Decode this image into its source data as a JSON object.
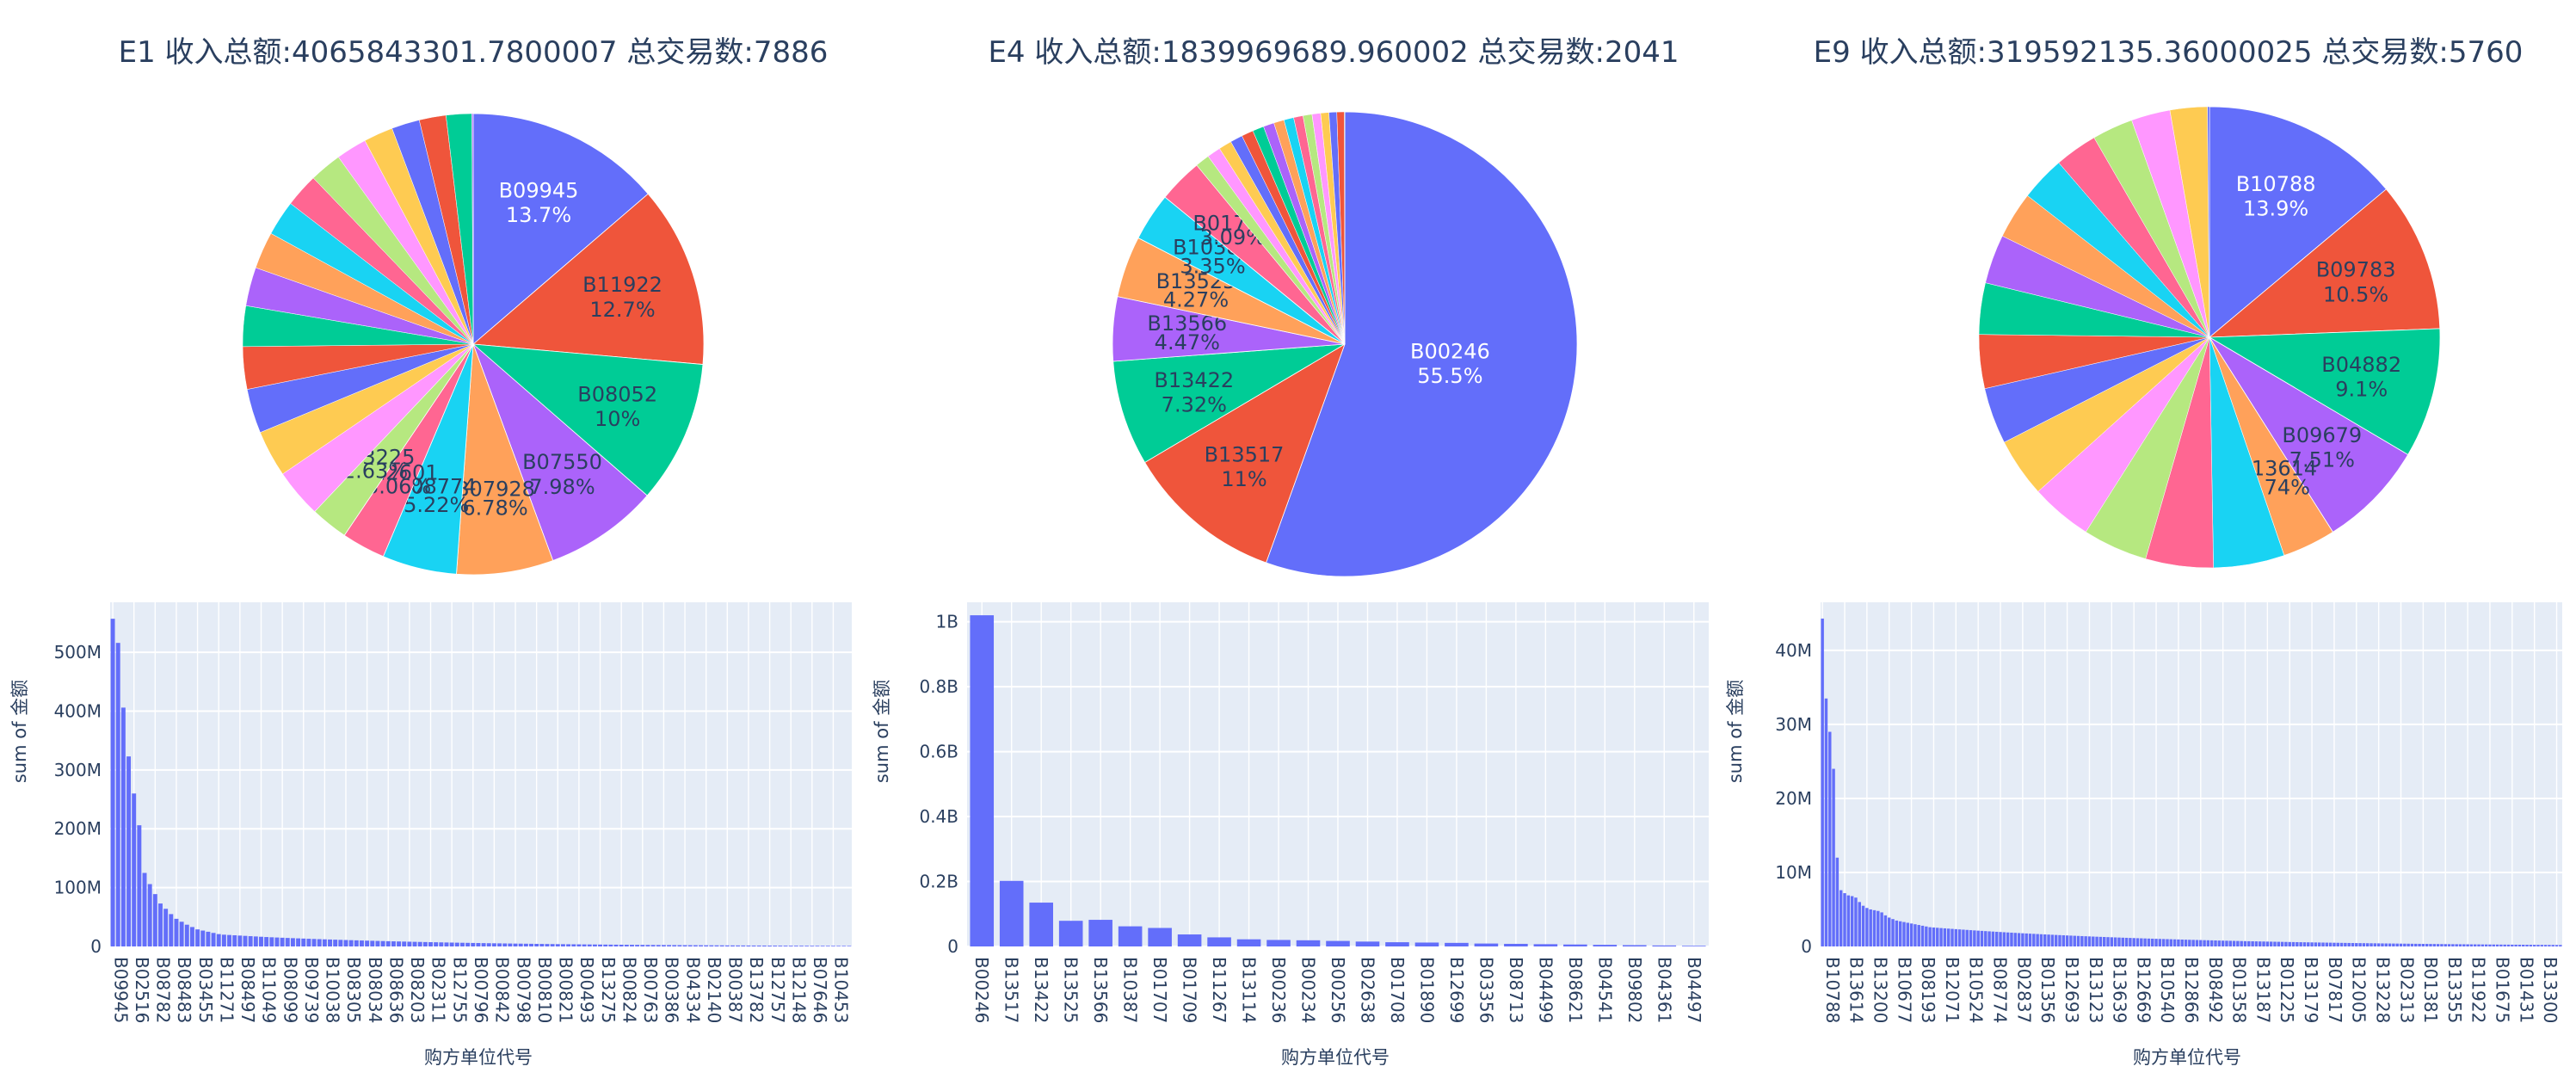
{
  "colors": {
    "palette": [
      "#636efa",
      "#EF553B",
      "#00cc96",
      "#ab63fa",
      "#FFA15A",
      "#19d3f3",
      "#FF6692",
      "#B6E880",
      "#FF97FF",
      "#FECB52"
    ],
    "plot_bg": "#e5ecf6",
    "grid": "#ffffff",
    "text": "#2a3f5f",
    "bar": "#636efa"
  },
  "chart_data": [
    {
      "type": "pie",
      "title": "E1 收入总额:4065843301.7800007  总交易数:7886",
      "slices": [
        {
          "label": "B09945",
          "percent": 13.7
        },
        {
          "label": "B11922",
          "percent": 12.7
        },
        {
          "label": "B08052",
          "percent": 10
        },
        {
          "label": "B07550",
          "percent": 7.98
        },
        {
          "label": "B07928",
          "percent": 6.78
        },
        {
          "label": "B08774",
          "percent": 5.22
        },
        {
          "label": "B12601",
          "percent": 3.06
        },
        {
          "label": "B03225",
          "percent": 2.63
        }
      ]
    },
    {
      "type": "pie",
      "title": "E4 收入总额:1839969689.960002  总交易数:2041",
      "slices": [
        {
          "label": "B00246",
          "percent": 55.5
        },
        {
          "label": "B13517",
          "percent": 11
        },
        {
          "label": "B13422",
          "percent": 7.32
        },
        {
          "label": "B13566",
          "percent": 4.47
        },
        {
          "label": "B13525",
          "percent": 4.27
        },
        {
          "label": "B10387",
          "percent": 3.35
        },
        {
          "label": "B01707",
          "percent": 3.09
        }
      ]
    },
    {
      "type": "pie",
      "title": "E9 收入总额:319592135.36000025  总交易数:5760",
      "slices": [
        {
          "label": "B10788",
          "percent": 13.9
        },
        {
          "label": "B09783",
          "percent": 10.5
        },
        {
          "label": "B04882",
          "percent": 9.1
        },
        {
          "label": "B09679",
          "percent": 7.51
        },
        {
          "label": "B13614",
          "percent": 3.74
        }
      ]
    },
    {
      "type": "bar",
      "xlabel": "购方单位代号",
      "ylabel": "sum of 金额",
      "yticks": [
        0,
        100,
        200,
        300,
        400,
        500
      ],
      "ytick_labels": [
        "0",
        "100M",
        "200M",
        "300M",
        "400M",
        "500M"
      ],
      "ylim": [
        0,
        585
      ],
      "n_bars": 140,
      "values_head": [
        557,
        516,
        406,
        323,
        260,
        206,
        125,
        106,
        89,
        73,
        64,
        55,
        47,
        42,
        37,
        33,
        29,
        27,
        25,
        23,
        21,
        20,
        19.5,
        19,
        18.5,
        18,
        17.5,
        17,
        16.5,
        16
      ],
      "tail_decay": 0.975,
      "xtick_labels": [
        "B09945",
        "B02516",
        "B08782",
        "B08483",
        "B03455",
        "B11271",
        "B08497",
        "B11049",
        "B08099",
        "B09739",
        "B10038",
        "B08305",
        "B08034",
        "B08636",
        "B08203",
        "B02311",
        "B12755",
        "B00796",
        "B00842",
        "B00798",
        "B00810",
        "B00821",
        "B00493",
        "B13275",
        "B00824",
        "B00763",
        "B00386",
        "B04334",
        "B02140",
        "B00387",
        "B13782",
        "B12757",
        "B12148",
        "B07646",
        "B10453"
      ]
    },
    {
      "type": "bar",
      "xlabel": "购方单位代号",
      "ylabel": "sum of 金额",
      "yticks": [
        0,
        0.2,
        0.4,
        0.6,
        0.8,
        1
      ],
      "ytick_labels": [
        "0",
        "0.2B",
        "0.4B",
        "0.6B",
        "0.8B",
        "1B"
      ],
      "ylim": [
        0,
        1.06
      ],
      "categories": [
        "B00246",
        "B13517",
        "B13422",
        "B13525",
        "B13566",
        "B10387",
        "B01707",
        "B01709",
        "B11267",
        "B13114",
        "B00236",
        "B00234",
        "B00256",
        "B02638",
        "B01708",
        "B01890",
        "B12699",
        "B03356",
        "B08713",
        "B04499",
        "B08621",
        "B04541",
        "B09802",
        "B04361",
        "B04497"
      ],
      "values": [
        1.02,
        0.202,
        0.135,
        0.079,
        0.082,
        0.062,
        0.057,
        0.037,
        0.028,
        0.022,
        0.02,
        0.019,
        0.017,
        0.015,
        0.013,
        0.012,
        0.011,
        0.009,
        0.008,
        0.007,
        0.006,
        0.005,
        0.004,
        0.003,
        0.002
      ]
    },
    {
      "type": "bar",
      "xlabel": "购方单位代号",
      "ylabel": "sum of 金额",
      "yticks": [
        0,
        10,
        20,
        30,
        40
      ],
      "ytick_labels": [
        "0",
        "10M",
        "20M",
        "30M",
        "40M"
      ],
      "ylim": [
        0,
        46.5
      ],
      "n_bars": 200,
      "values_head": [
        44.3,
        33.5,
        29,
        24,
        12,
        7.6,
        7.2,
        6.9,
        6.8,
        6.6,
        6,
        5.5,
        5.2,
        5,
        4.9,
        4.8,
        4.6,
        4.2,
        3.9,
        3.7,
        3.5,
        3.4,
        3.3,
        3.2,
        3.1,
        3.0,
        2.9,
        2.8,
        2.7,
        2.6
      ],
      "tail_decay": 0.985,
      "xtick_labels": [
        "B10788",
        "B13614",
        "B13200",
        "B10677",
        "B08193",
        "B12071",
        "B10524",
        "B08774",
        "B02837",
        "B01356",
        "B12693",
        "B13123",
        "B13639",
        "B12669",
        "B10540",
        "B12866",
        "B08492",
        "B01358",
        "B13187",
        "B01225",
        "B13179",
        "B07817",
        "B12005",
        "B13228",
        "B02313",
        "B01381",
        "B13355",
        "B11922",
        "B01675",
        "B01431",
        "B13300"
      ]
    }
  ]
}
